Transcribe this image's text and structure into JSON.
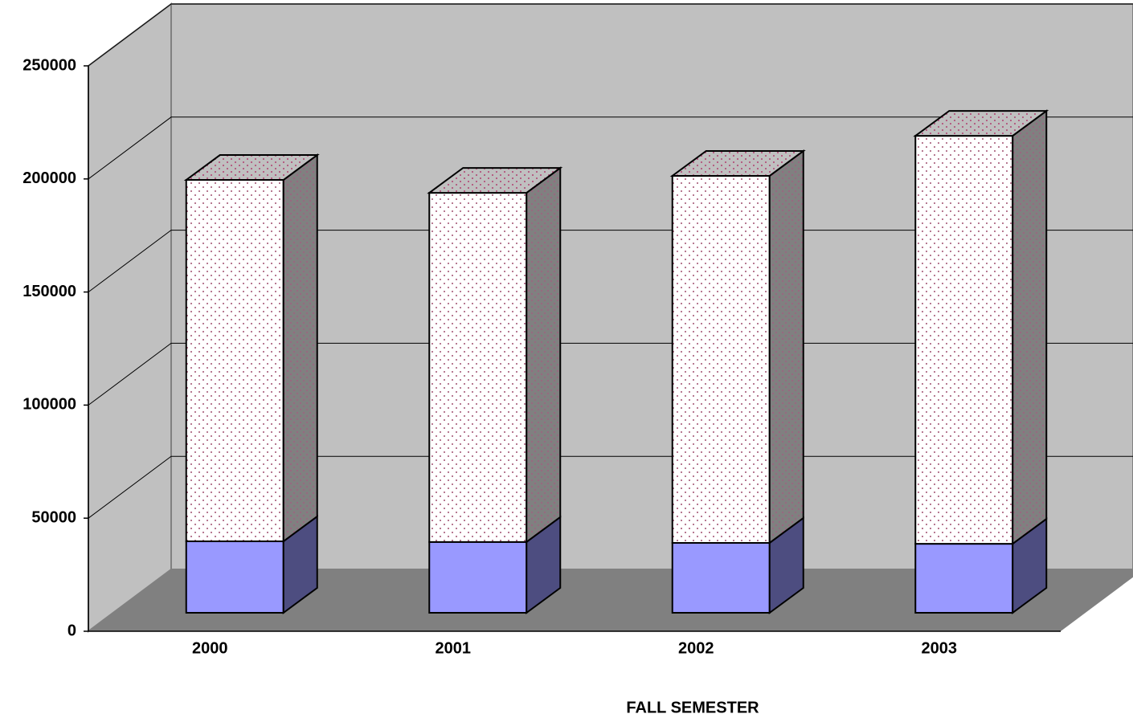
{
  "chart_data": {
    "type": "bar3d_stacked",
    "xlabel": "FALL SEMESTER",
    "categories": [
      "2000",
      "2001",
      "2002",
      "2003"
    ],
    "series": [
      {
        "color": "#9999ff",
        "values": [
          31600,
          31300,
          30900,
          30500
        ]
      },
      {
        "color": "#ffffff",
        "values": [
          159800,
          154400,
          162300,
          180400
        ]
      }
    ],
    "ylim": [
      0,
      250000
    ],
    "yticks": [
      0,
      50000,
      100000,
      150000,
      200000,
      250000
    ],
    "grid": true
  }
}
